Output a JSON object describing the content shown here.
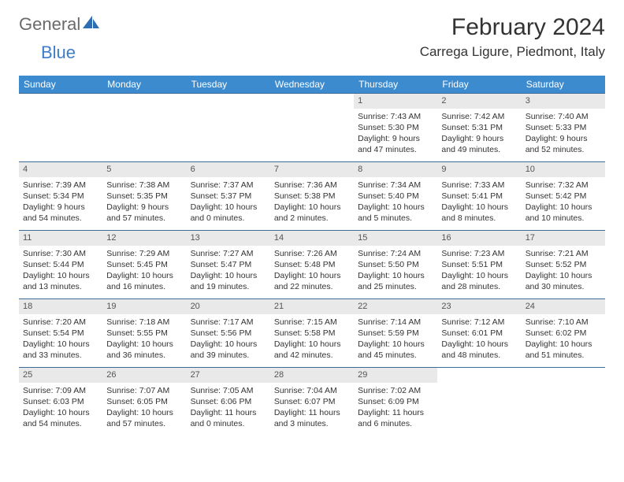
{
  "brand": {
    "part1": "General",
    "part2": "Blue"
  },
  "title": "February 2024",
  "location": "Carrega Ligure, Piedmont, Italy",
  "colors": {
    "header_bg": "#3d8bcf",
    "header_text": "#ffffff",
    "border": "#3d6a99",
    "daynum_bg": "#e9e9e9",
    "text": "#333333",
    "brand_gray": "#6a6a6a",
    "brand_blue": "#3d7cc9"
  },
  "days_of_week": [
    "Sunday",
    "Monday",
    "Tuesday",
    "Wednesday",
    "Thursday",
    "Friday",
    "Saturday"
  ],
  "weeks": [
    [
      {
        "num": "",
        "sunrise": "",
        "sunset": "",
        "daylight": ""
      },
      {
        "num": "",
        "sunrise": "",
        "sunset": "",
        "daylight": ""
      },
      {
        "num": "",
        "sunrise": "",
        "sunset": "",
        "daylight": ""
      },
      {
        "num": "",
        "sunrise": "",
        "sunset": "",
        "daylight": ""
      },
      {
        "num": "1",
        "sunrise": "Sunrise: 7:43 AM",
        "sunset": "Sunset: 5:30 PM",
        "daylight": "Daylight: 9 hours and 47 minutes."
      },
      {
        "num": "2",
        "sunrise": "Sunrise: 7:42 AM",
        "sunset": "Sunset: 5:31 PM",
        "daylight": "Daylight: 9 hours and 49 minutes."
      },
      {
        "num": "3",
        "sunrise": "Sunrise: 7:40 AM",
        "sunset": "Sunset: 5:33 PM",
        "daylight": "Daylight: 9 hours and 52 minutes."
      }
    ],
    [
      {
        "num": "4",
        "sunrise": "Sunrise: 7:39 AM",
        "sunset": "Sunset: 5:34 PM",
        "daylight": "Daylight: 9 hours and 54 minutes."
      },
      {
        "num": "5",
        "sunrise": "Sunrise: 7:38 AM",
        "sunset": "Sunset: 5:35 PM",
        "daylight": "Daylight: 9 hours and 57 minutes."
      },
      {
        "num": "6",
        "sunrise": "Sunrise: 7:37 AM",
        "sunset": "Sunset: 5:37 PM",
        "daylight": "Daylight: 10 hours and 0 minutes."
      },
      {
        "num": "7",
        "sunrise": "Sunrise: 7:36 AM",
        "sunset": "Sunset: 5:38 PM",
        "daylight": "Daylight: 10 hours and 2 minutes."
      },
      {
        "num": "8",
        "sunrise": "Sunrise: 7:34 AM",
        "sunset": "Sunset: 5:40 PM",
        "daylight": "Daylight: 10 hours and 5 minutes."
      },
      {
        "num": "9",
        "sunrise": "Sunrise: 7:33 AM",
        "sunset": "Sunset: 5:41 PM",
        "daylight": "Daylight: 10 hours and 8 minutes."
      },
      {
        "num": "10",
        "sunrise": "Sunrise: 7:32 AM",
        "sunset": "Sunset: 5:42 PM",
        "daylight": "Daylight: 10 hours and 10 minutes."
      }
    ],
    [
      {
        "num": "11",
        "sunrise": "Sunrise: 7:30 AM",
        "sunset": "Sunset: 5:44 PM",
        "daylight": "Daylight: 10 hours and 13 minutes."
      },
      {
        "num": "12",
        "sunrise": "Sunrise: 7:29 AM",
        "sunset": "Sunset: 5:45 PM",
        "daylight": "Daylight: 10 hours and 16 minutes."
      },
      {
        "num": "13",
        "sunrise": "Sunrise: 7:27 AM",
        "sunset": "Sunset: 5:47 PM",
        "daylight": "Daylight: 10 hours and 19 minutes."
      },
      {
        "num": "14",
        "sunrise": "Sunrise: 7:26 AM",
        "sunset": "Sunset: 5:48 PM",
        "daylight": "Daylight: 10 hours and 22 minutes."
      },
      {
        "num": "15",
        "sunrise": "Sunrise: 7:24 AM",
        "sunset": "Sunset: 5:50 PM",
        "daylight": "Daylight: 10 hours and 25 minutes."
      },
      {
        "num": "16",
        "sunrise": "Sunrise: 7:23 AM",
        "sunset": "Sunset: 5:51 PM",
        "daylight": "Daylight: 10 hours and 28 minutes."
      },
      {
        "num": "17",
        "sunrise": "Sunrise: 7:21 AM",
        "sunset": "Sunset: 5:52 PM",
        "daylight": "Daylight: 10 hours and 30 minutes."
      }
    ],
    [
      {
        "num": "18",
        "sunrise": "Sunrise: 7:20 AM",
        "sunset": "Sunset: 5:54 PM",
        "daylight": "Daylight: 10 hours and 33 minutes."
      },
      {
        "num": "19",
        "sunrise": "Sunrise: 7:18 AM",
        "sunset": "Sunset: 5:55 PM",
        "daylight": "Daylight: 10 hours and 36 minutes."
      },
      {
        "num": "20",
        "sunrise": "Sunrise: 7:17 AM",
        "sunset": "Sunset: 5:56 PM",
        "daylight": "Daylight: 10 hours and 39 minutes."
      },
      {
        "num": "21",
        "sunrise": "Sunrise: 7:15 AM",
        "sunset": "Sunset: 5:58 PM",
        "daylight": "Daylight: 10 hours and 42 minutes."
      },
      {
        "num": "22",
        "sunrise": "Sunrise: 7:14 AM",
        "sunset": "Sunset: 5:59 PM",
        "daylight": "Daylight: 10 hours and 45 minutes."
      },
      {
        "num": "23",
        "sunrise": "Sunrise: 7:12 AM",
        "sunset": "Sunset: 6:01 PM",
        "daylight": "Daylight: 10 hours and 48 minutes."
      },
      {
        "num": "24",
        "sunrise": "Sunrise: 7:10 AM",
        "sunset": "Sunset: 6:02 PM",
        "daylight": "Daylight: 10 hours and 51 minutes."
      }
    ],
    [
      {
        "num": "25",
        "sunrise": "Sunrise: 7:09 AM",
        "sunset": "Sunset: 6:03 PM",
        "daylight": "Daylight: 10 hours and 54 minutes."
      },
      {
        "num": "26",
        "sunrise": "Sunrise: 7:07 AM",
        "sunset": "Sunset: 6:05 PM",
        "daylight": "Daylight: 10 hours and 57 minutes."
      },
      {
        "num": "27",
        "sunrise": "Sunrise: 7:05 AM",
        "sunset": "Sunset: 6:06 PM",
        "daylight": "Daylight: 11 hours and 0 minutes."
      },
      {
        "num": "28",
        "sunrise": "Sunrise: 7:04 AM",
        "sunset": "Sunset: 6:07 PM",
        "daylight": "Daylight: 11 hours and 3 minutes."
      },
      {
        "num": "29",
        "sunrise": "Sunrise: 7:02 AM",
        "sunset": "Sunset: 6:09 PM",
        "daylight": "Daylight: 11 hours and 6 minutes."
      },
      {
        "num": "",
        "sunrise": "",
        "sunset": "",
        "daylight": ""
      },
      {
        "num": "",
        "sunrise": "",
        "sunset": "",
        "daylight": ""
      }
    ]
  ]
}
